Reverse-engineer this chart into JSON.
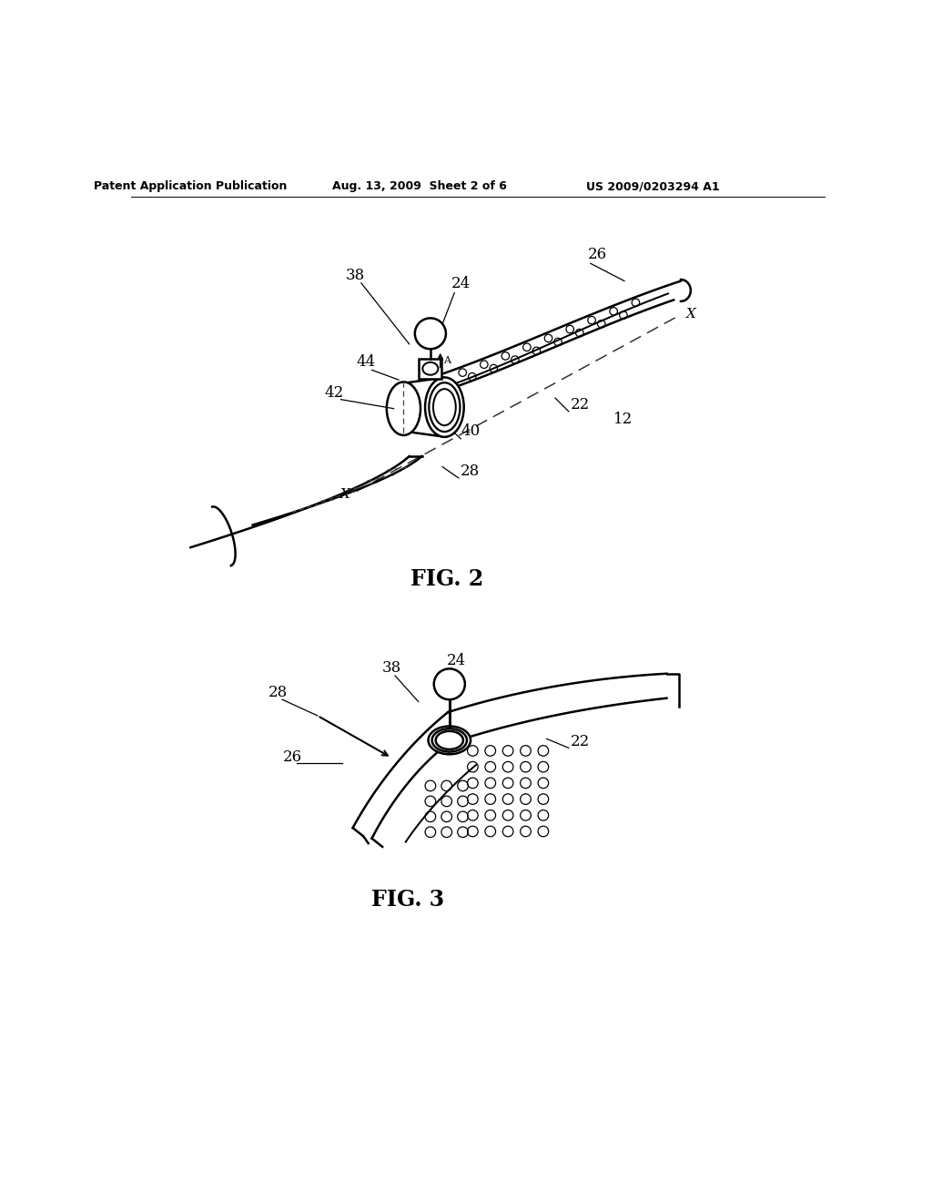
{
  "bg_color": "#ffffff",
  "header_left": "Patent Application Publication",
  "header_mid": "Aug. 13, 2009  Sheet 2 of 6",
  "header_right": "US 2009/0203294 A1",
  "fig2_label": "FIG. 2",
  "fig3_label": "FIG. 3",
  "text_color": "#000000",
  "line_color": "#000000"
}
